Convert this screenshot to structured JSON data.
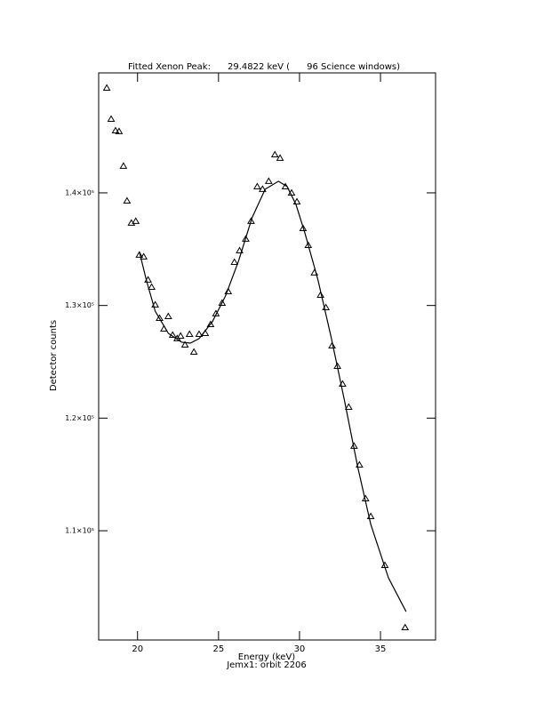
{
  "chart_data": {
    "type": "scatter",
    "title": "Fitted Xenon Peak:      29.4822 keV (      96 Science windows)",
    "x_label": "Energy (keV)",
    "subtitle": "Jemx1: orbit 2206",
    "y_label": "Detector counts",
    "color": "#000000",
    "xlim": [
      17.6,
      38.4
    ],
    "ylim": [
      100300,
      150650
    ],
    "xticks": [
      20,
      25,
      30,
      35
    ],
    "yticks": [
      {
        "value": 110000,
        "label": "1.1×10⁵"
      },
      {
        "value": 120000,
        "label": "1.2×10⁵"
      },
      {
        "value": 130000,
        "label": "1.3×10⁵"
      },
      {
        "value": 140000,
        "label": "1.4×10⁵"
      }
    ],
    "points": {
      "x": [
        18.1,
        18.37,
        18.64,
        18.86,
        19.13,
        19.35,
        19.62,
        19.89,
        20.11,
        20.38,
        20.65,
        20.87,
        21.09,
        21.36,
        21.63,
        21.9,
        22.17,
        22.45,
        22.66,
        22.93,
        23.21,
        23.48,
        23.8,
        24.18,
        24.51,
        24.84,
        25.22,
        25.6,
        25.98,
        26.3,
        26.68,
        27.01,
        27.39,
        27.72,
        28.1,
        28.48,
        28.8,
        29.13,
        29.51,
        29.84,
        30.22,
        30.54,
        30.92,
        31.3,
        31.63,
        32.01,
        32.34,
        32.66,
        33.04,
        33.37,
        33.7,
        34.08,
        34.4,
        35.27,
        36.52
      ],
      "y": [
        149310,
        146550,
        145520,
        145450,
        142370,
        139290,
        137320,
        137480,
        134480,
        134320,
        132270,
        131630,
        130060,
        128870,
        127920,
        129030,
        127370,
        127060,
        127290,
        126500,
        127450,
        125870,
        127450,
        127530,
        128320,
        129270,
        130210,
        131240,
        133840,
        134870,
        135900,
        137480,
        140550,
        140320,
        141030,
        143390,
        143080,
        140550,
        140000,
        139210,
        136840,
        135340,
        132900,
        130920,
        129820,
        126420,
        124610,
        123030,
        120980,
        117510,
        115850,
        112850,
        111270,
        106930,
        101400
      ]
    },
    "fit": {
      "x": [
        20.11,
        20.54,
        21.09,
        21.9,
        22.72,
        23.26,
        23.8,
        24.62,
        25.43,
        26.25,
        27.07,
        27.88,
        28.7,
        29.24,
        29.78,
        30.33,
        31.14,
        31.96,
        32.77,
        33.59,
        34.4,
        35.49,
        36.58
      ],
      "y": [
        134790,
        132270,
        129500,
        127530,
        126740,
        126660,
        127060,
        128560,
        130840,
        134000,
        137790,
        140320,
        141030,
        140550,
        138970,
        136450,
        132270,
        127140,
        121610,
        115690,
        110560,
        105820,
        102820
      ]
    }
  }
}
